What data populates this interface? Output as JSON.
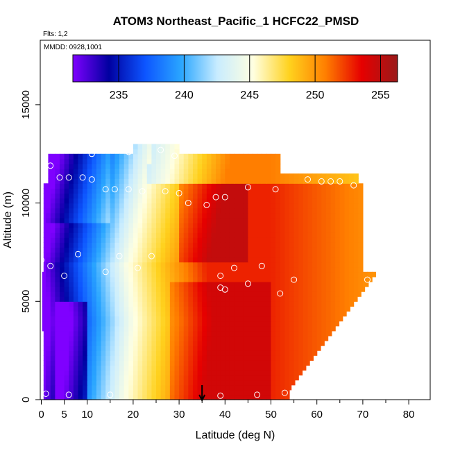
{
  "chart_data": {
    "type": "heatmap",
    "title": "ATOM3 Northeast_Pacific_1 HCFC22_PMSD",
    "annotations": [
      "Flts: 1,2",
      "MMDD: 0928,1001"
    ],
    "xlabel": "Latitude (deg N)",
    "ylabel": "Altitude (m)",
    "xlim": [
      0,
      85
    ],
    "ylim": [
      0,
      18000
    ],
    "x_ticks": [
      0,
      5,
      10,
      20,
      30,
      40,
      50,
      60,
      70,
      80
    ],
    "y_ticks": [
      0,
      5000,
      10000,
      15000
    ],
    "colorbar": {
      "range": [
        231.5,
        256.3
      ],
      "ticks": [
        235,
        240,
        245,
        250,
        255
      ],
      "colors": [
        "#7f00ff",
        "#0000a0",
        "#0d55ff",
        "#2aa6ff",
        "#c8ecff",
        "#ffffe0",
        "#ffd21e",
        "#ff7f00",
        "#e60000",
        "#9a1a1a"
      ]
    },
    "dip_arrow_latitude": 35,
    "flight_points": [
      [
        1,
        300
      ],
      [
        6,
        250
      ],
      [
        15,
        250
      ],
      [
        39,
        200
      ],
      [
        47,
        250
      ],
      [
        53,
        350
      ],
      [
        0,
        7100
      ],
      [
        2,
        6800
      ],
      [
        5,
        6300
      ],
      [
        14,
        6500
      ],
      [
        21,
        6700
      ],
      [
        24,
        7300
      ],
      [
        17,
        7300
      ],
      [
        8,
        7400
      ],
      [
        39,
        5700
      ],
      [
        40,
        5600
      ],
      [
        45,
        5900
      ],
      [
        52,
        5400
      ],
      [
        55,
        6100
      ],
      [
        42,
        6700
      ],
      [
        48,
        6800
      ],
      [
        39,
        6300
      ],
      [
        14,
        10700
      ],
      [
        16,
        10700
      ],
      [
        19,
        10700
      ],
      [
        22,
        10600
      ],
      [
        27,
        10600
      ],
      [
        30,
        10500
      ],
      [
        32,
        10000
      ],
      [
        36,
        9900
      ],
      [
        38,
        10300
      ],
      [
        40,
        10300
      ],
      [
        45,
        10800
      ],
      [
        51,
        10700
      ],
      [
        58,
        11200
      ],
      [
        61,
        11100
      ],
      [
        63,
        11100
      ],
      [
        65,
        11100
      ],
      [
        68,
        10900
      ],
      [
        2,
        11900
      ],
      [
        4,
        11300
      ],
      [
        6,
        11300
      ],
      [
        9,
        11300
      ],
      [
        11,
        11200
      ],
      [
        11,
        12500
      ],
      [
        19,
        12600
      ],
      [
        26,
        12700
      ],
      [
        29,
        12400
      ],
      [
        71,
        6100
      ]
    ]
  }
}
